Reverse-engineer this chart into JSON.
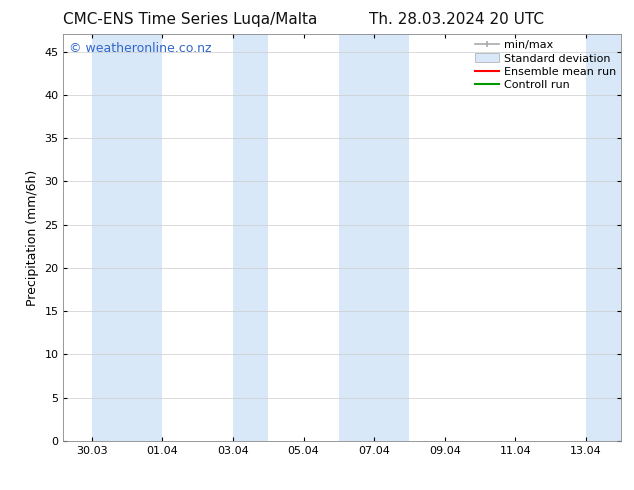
{
  "title_left": "CMC-ENS Time Series Luqa/Malta",
  "title_right": "Th. 28.03.2024 20 UTC",
  "ylabel": "Precipitation (mm/6h)",
  "watermark": "© weatheronline.co.nz",
  "ylim": [
    0,
    47
  ],
  "yticks": [
    0,
    5,
    10,
    15,
    20,
    25,
    30,
    35,
    40,
    45
  ],
  "background_color": "#ffffff",
  "plot_bg_color": "#ffffff",
  "blue_band_color": "#d8e8f8",
  "blue_bands": [
    {
      "x_start": 29.5,
      "x_end": 31.5
    },
    {
      "x_start": 33.5,
      "x_end": 34.5
    },
    {
      "x_start": 36.5,
      "x_end": 38.5
    },
    {
      "x_start": 43.5,
      "x_end": 44.5
    }
  ],
  "xtick_labels": [
    "30.03",
    "01.04",
    "03.04",
    "05.04",
    "07.04",
    "09.04",
    "11.04",
    "13.04"
  ],
  "xtick_positions": [
    29.5,
    31.5,
    33.5,
    35.5,
    37.5,
    39.5,
    41.5,
    43.5
  ],
  "xlim": [
    28.7,
    44.5
  ],
  "legend_items": [
    {
      "label": "min/max",
      "color_line": "#aaaaaa"
    },
    {
      "label": "Standard deviation",
      "color_fill": "#c8ddf0"
    },
    {
      "label": "Ensemble mean run",
      "color_line": "#ff0000"
    },
    {
      "label": "Controll run",
      "color_line": "#009900"
    }
  ],
  "title_fontsize": 11,
  "axis_label_fontsize": 9,
  "tick_fontsize": 8,
  "legend_fontsize": 8,
  "watermark_color": "#3366cc",
  "watermark_fontsize": 9,
  "grid_color": "#cccccc",
  "spine_color": "#888888"
}
